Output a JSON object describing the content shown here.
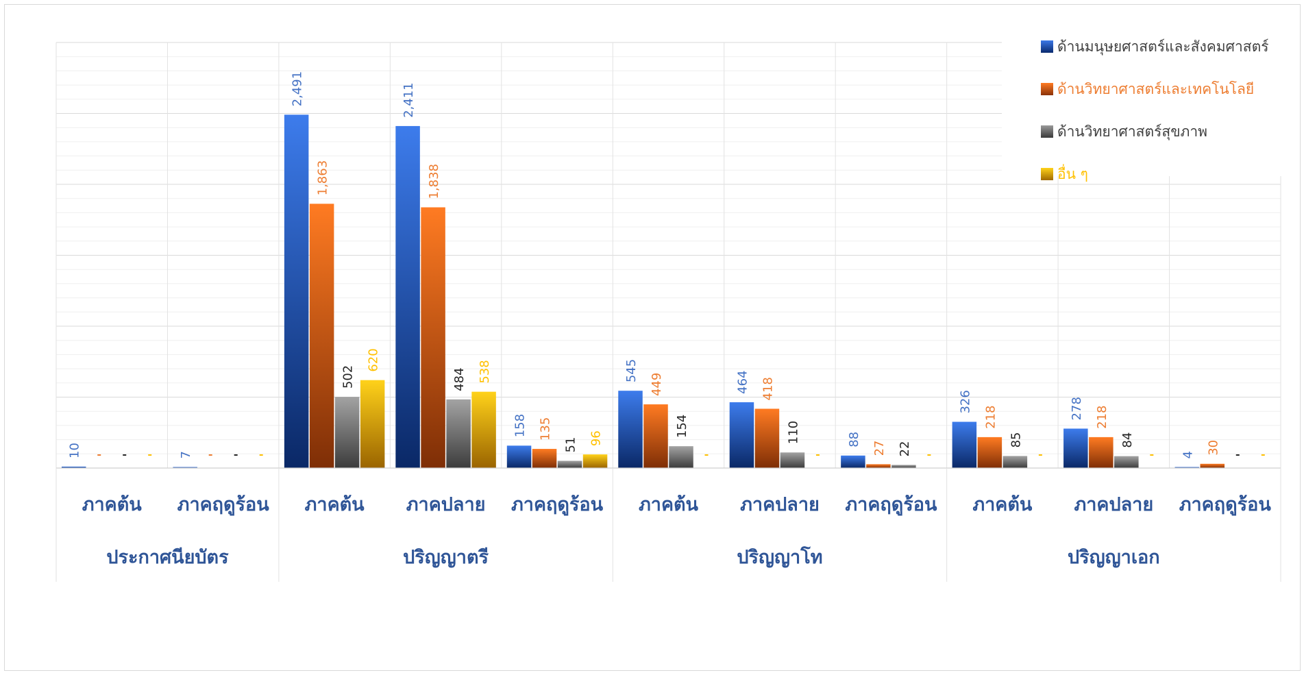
{
  "chart_data": {
    "type": "bar",
    "title": "",
    "xlabel": "",
    "ylabel": "",
    "ylim": [
      0,
      3000
    ],
    "grid": true,
    "legend_position": "top-right",
    "groups": [
      {
        "label": "ประกาศนียบัตร",
        "categories": [
          "ภาคต้น",
          "ภาคฤดูร้อน"
        ]
      },
      {
        "label": "ปริญญาตรี",
        "categories": [
          "ภาคต้น",
          "ภาคปลาย",
          "ภาคฤดูร้อน"
        ]
      },
      {
        "label": "ปริญญาโท",
        "categories": [
          "ภาคต้น",
          "ภาคปลาย",
          "ภาคฤดูร้อน"
        ]
      },
      {
        "label": "ปริญญาเอก",
        "categories": [
          "ภาคต้น",
          "ภาคปลาย",
          "ภาคฤดูร้อน"
        ]
      }
    ],
    "series": [
      {
        "name": "ด้านมนุษยศาสตร์และสังคมศาสตร์",
        "color": "#2f63c9",
        "values": [
          10,
          7,
          2491,
          2411,
          158,
          545,
          464,
          88,
          326,
          278,
          4
        ],
        "labels": [
          "10",
          "7",
          "2,491",
          "2,411",
          "158",
          "545",
          "464",
          "88",
          "326",
          "278",
          "4"
        ]
      },
      {
        "name": "ด้านวิทยาศาสตร์และเทคโนโลยี",
        "color": "#f07020",
        "values": [
          0,
          0,
          1863,
          1838,
          135,
          449,
          418,
          27,
          218,
          218,
          30
        ],
        "labels": [
          "-",
          "-",
          "1,863",
          "1,838",
          "135",
          "449",
          "418",
          "27",
          "218",
          "218",
          "30"
        ]
      },
      {
        "name": "ด้านวิทยาศาสตร์สุขภาพ",
        "color": "#7f7f7f",
        "values": [
          0,
          0,
          502,
          484,
          51,
          154,
          110,
          22,
          85,
          84,
          0
        ],
        "labels": [
          "-",
          "-",
          "502",
          "484",
          "51",
          "154",
          "110",
          "22",
          "85",
          "84",
          "-"
        ]
      },
      {
        "name": "อื่น ๆ",
        "color": "#ffc000",
        "values": [
          0,
          0,
          620,
          538,
          96,
          0,
          0,
          0,
          0,
          0,
          0
        ],
        "labels": [
          "-",
          "-",
          "620",
          "538",
          "96",
          "-",
          "-",
          "-",
          "-",
          "-",
          "-"
        ]
      }
    ],
    "label_colors": [
      "#4472c4",
      "#ed7d31",
      "#262626",
      "#ffc000"
    ],
    "axis_label_color": "#2f5597"
  }
}
